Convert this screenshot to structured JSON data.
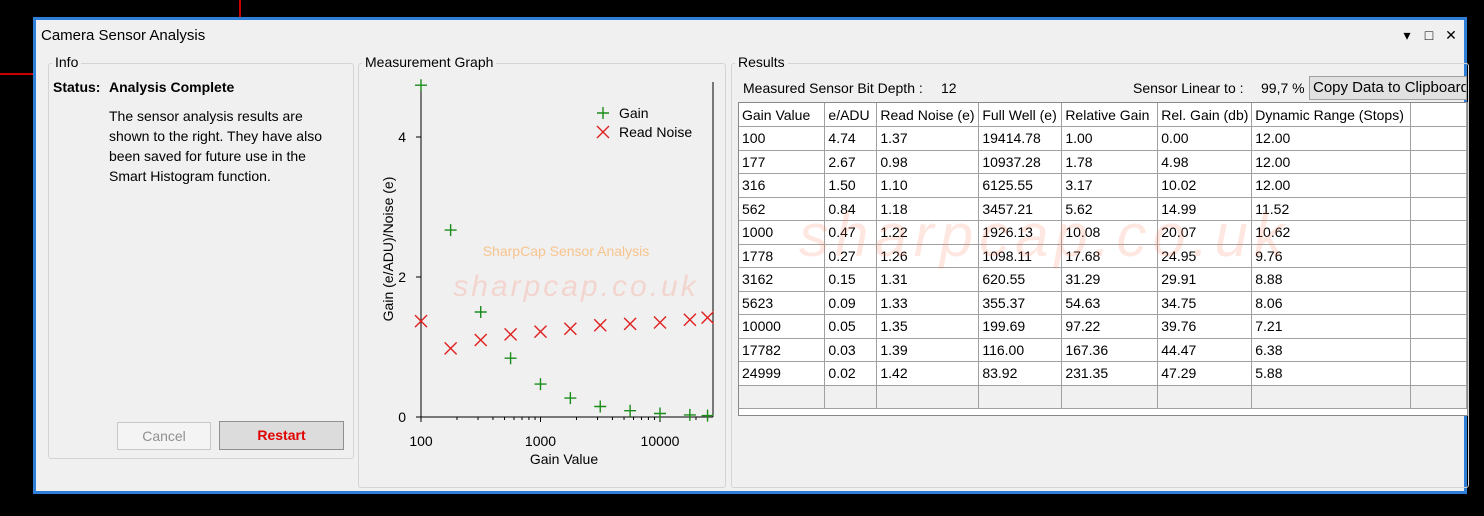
{
  "window": {
    "title": "Camera Sensor Analysis",
    "controls": {
      "dropdown": "▾",
      "maximize": "□",
      "close": "✕"
    }
  },
  "info": {
    "group_title": "Info",
    "status_label": "Status:",
    "status_value": "Analysis Complete",
    "text_lines": [
      "The sensor analysis results are",
      "shown to the right. They have also",
      "been saved for future use in the",
      "Smart Histogram function."
    ],
    "cancel_label": "Cancel",
    "restart_label": "Restart"
  },
  "graph": {
    "group_title": "Measurement Graph",
    "watermark_title": "SharpCap Sensor Analysis",
    "watermark_url": "sharpcap.co.uk"
  },
  "results": {
    "group_title": "Results",
    "bit_depth_label": "Measured Sensor Bit Depth :",
    "bit_depth_value": "12",
    "linear_label": "Sensor Linear to :",
    "linear_value": "99,7 %",
    "copy_button_label": "Copy Data to Clipboard",
    "watermark": "sharpcap.co.uk",
    "columns": [
      "Gain Value",
      "e/ADU",
      "Read Noise (e)",
      "Full Well (e)",
      "Relative Gain",
      "Rel. Gain (db)",
      "Dynamic Range (Stops)"
    ],
    "rows": [
      [
        "100",
        "4.74",
        "1.37",
        "19414.78",
        "1.00",
        "0.00",
        "12.00"
      ],
      [
        "177",
        "2.67",
        "0.98",
        "10937.28",
        "1.78",
        "4.98",
        "12.00"
      ],
      [
        "316",
        "1.50",
        "1.10",
        "6125.55",
        "3.17",
        "10.02",
        "12.00"
      ],
      [
        "562",
        "0.84",
        "1.18",
        "3457.21",
        "5.62",
        "14.99",
        "11.52"
      ],
      [
        "1000",
        "0.47",
        "1.22",
        "1926.13",
        "10.08",
        "20.07",
        "10.62"
      ],
      [
        "1778",
        "0.27",
        "1.26",
        "1098.11",
        "17.68",
        "24.95",
        "9.76"
      ],
      [
        "3162",
        "0.15",
        "1.31",
        "620.55",
        "31.29",
        "29.91",
        "8.88"
      ],
      [
        "5623",
        "0.09",
        "1.33",
        "355.37",
        "54.63",
        "34.75",
        "8.06"
      ],
      [
        "10000",
        "0.05",
        "1.35",
        "199.69",
        "97.22",
        "39.76",
        "7.21"
      ],
      [
        "17782",
        "0.03",
        "1.39",
        "116.00",
        "167.36",
        "44.47",
        "6.38"
      ],
      [
        "24999",
        "0.02",
        "1.42",
        "83.92",
        "231.35",
        "47.29",
        "5.88"
      ]
    ]
  },
  "chart_data": {
    "type": "scatter",
    "xlabel": "Gain Value",
    "ylabel": "Gain (e/ADU)/Noise (e)",
    "xscale": "log",
    "xlim": [
      100,
      25000
    ],
    "ylim": [
      0,
      4.8
    ],
    "xticks": [
      "100",
      "1000",
      "10000"
    ],
    "yticks": [
      "0",
      "2",
      "4"
    ],
    "legend_position": "top-right",
    "x": [
      100,
      177,
      316,
      562,
      1000,
      1778,
      3162,
      5623,
      10000,
      17782,
      24999
    ],
    "series": [
      {
        "name": "Gain",
        "marker": "+",
        "color": "#1a8c1a",
        "values": [
          4.74,
          2.67,
          1.5,
          0.84,
          0.47,
          0.27,
          0.15,
          0.09,
          0.05,
          0.03,
          0.02
        ]
      },
      {
        "name": "Read Noise",
        "marker": "x",
        "color": "#e02020",
        "values": [
          1.37,
          0.98,
          1.1,
          1.18,
          1.22,
          1.26,
          1.31,
          1.33,
          1.35,
          1.39,
          1.42
        ]
      }
    ]
  }
}
